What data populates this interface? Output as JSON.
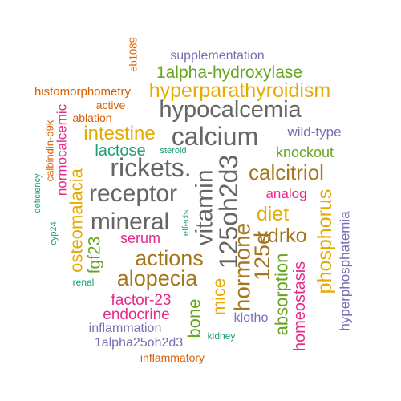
{
  "colors": {
    "green": "#1b9e77",
    "orange": "#d95f02",
    "purple": "#7570b3",
    "magenta": "#e7298a",
    "olive": "#66a61e",
    "gold": "#e6ab02",
    "brown": "#a6761d",
    "gray": "#666666"
  },
  "words": [
    {
      "text": "supplementation",
      "color": "purple"
    },
    {
      "text": "eb1089",
      "color": "orange"
    },
    {
      "text": "1alpha-hydroxylase",
      "color": "olive"
    },
    {
      "text": "histomorphometry",
      "color": "orange"
    },
    {
      "text": "hyperparathyroidism",
      "color": "gold"
    },
    {
      "text": "active",
      "color": "orange"
    },
    {
      "text": "hypocalcemia",
      "color": "gray"
    },
    {
      "text": "ablation",
      "color": "orange"
    },
    {
      "text": "intestine",
      "color": "gold"
    },
    {
      "text": "calcium",
      "color": "gray"
    },
    {
      "text": "wild-type",
      "color": "purple"
    },
    {
      "text": "lactose",
      "color": "green"
    },
    {
      "text": "steroid",
      "color": "green"
    },
    {
      "text": "knockout",
      "color": "olive"
    },
    {
      "text": "rickets.",
      "color": "gray"
    },
    {
      "text": "calcitriol",
      "color": "brown"
    },
    {
      "text": "receptor",
      "color": "gray"
    },
    {
      "text": "analog",
      "color": "magenta"
    },
    {
      "text": "diet",
      "color": "gold"
    },
    {
      "text": "mineral",
      "color": "gray"
    },
    {
      "text": "vdrko",
      "color": "brown"
    },
    {
      "text": "serum",
      "color": "magenta"
    },
    {
      "text": "actions",
      "color": "brown"
    },
    {
      "text": "alopecia",
      "color": "brown"
    },
    {
      "text": "factor-23",
      "color": "magenta"
    },
    {
      "text": "endocrine",
      "color": "magenta"
    },
    {
      "text": "inflammation",
      "color": "purple"
    },
    {
      "text": "klotho",
      "color": "purple"
    },
    {
      "text": "kidney",
      "color": "green"
    },
    {
      "text": "1alpha25oh2d3",
      "color": "purple"
    },
    {
      "text": "inflammatory",
      "color": "orange"
    },
    {
      "text": "renal",
      "color": "green"
    },
    {
      "text": "calbindin-d9k",
      "color": "orange"
    },
    {
      "text": "normocalcemic",
      "color": "magenta"
    },
    {
      "text": "deficiency",
      "color": "green"
    },
    {
      "text": "osteomalacia",
      "color": "gold"
    },
    {
      "text": "cyp24",
      "color": "green"
    },
    {
      "text": "fgf23",
      "color": "olive"
    },
    {
      "text": "effects",
      "color": "green"
    },
    {
      "text": "vitamin",
      "color": "gray"
    },
    {
      "text": "125oh2d3",
      "color": "gray"
    },
    {
      "text": "bone",
      "color": "olive"
    },
    {
      "text": "mice",
      "color": "gold"
    },
    {
      "text": "hormone",
      "color": "brown"
    },
    {
      "text": "125d",
      "color": "brown"
    },
    {
      "text": "absorption",
      "color": "olive"
    },
    {
      "text": "homeostasis",
      "color": "magenta"
    },
    {
      "text": "phosphorus",
      "color": "gold"
    },
    {
      "text": "hyperphosphatemia",
      "color": "purple"
    }
  ]
}
